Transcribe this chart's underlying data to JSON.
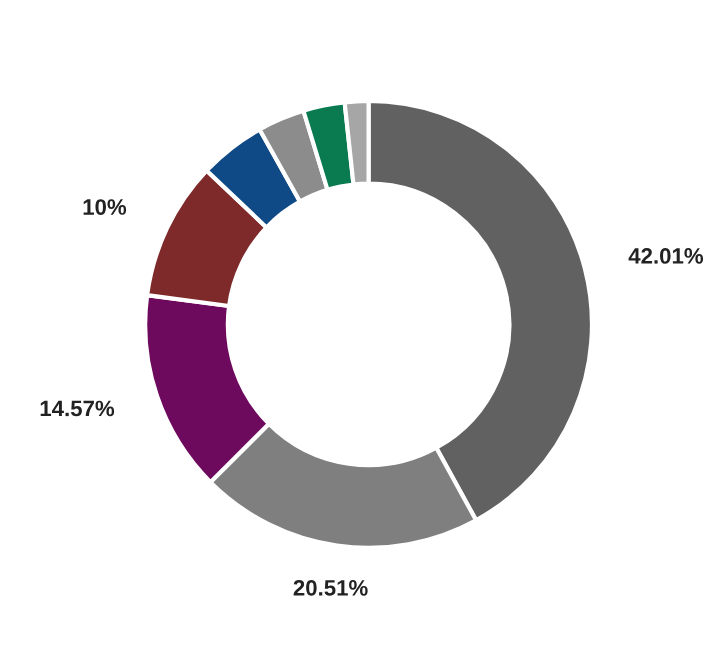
{
  "chart_data": {
    "type": "donut",
    "categories": [
      null,
      null,
      null,
      null,
      null,
      null,
      null,
      null
    ],
    "values": [
      42.01,
      20.51,
      14.57,
      10,
      4.8,
      3.4,
      3.0,
      1.71
    ],
    "colors": [
      "#616161",
      "#7f7f7f",
      "#6e0a5e",
      "#7e2a2a",
      "#0f4a86",
      "#8c8c8c",
      "#0a7a50",
      "#a6a6a6"
    ],
    "value_labels": [
      "42.01%",
      "20.51%",
      "14.57%",
      "10%",
      null,
      null,
      null,
      null
    ],
    "legend": false
  }
}
